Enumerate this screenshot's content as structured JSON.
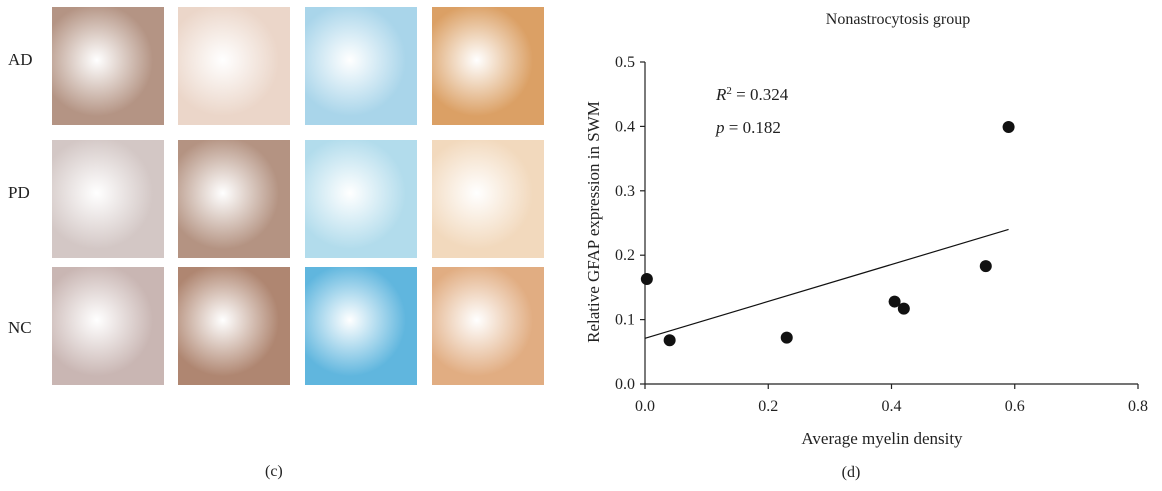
{
  "panel_c": {
    "rows": [
      {
        "label": "AD",
        "tile_colors": [
          "#b49484",
          "#ebd6c9",
          "#a9d5ea",
          "#dba065"
        ]
      },
      {
        "label": "PD",
        "tile_colors": [
          "#d3c7c5",
          "#b49382",
          "#b2dcec",
          "#f2d9bd"
        ]
      },
      {
        "label": "NC",
        "tile_colors": [
          "#c9b6b3",
          "#af8671",
          "#60b6de",
          "#e1ad82"
        ]
      }
    ],
    "caption": "(c)"
  },
  "panel_d": {
    "caption": "(d)",
    "annotation": {
      "r2_symbol": "R",
      "r2_exp": "2",
      "r2_value": " = 0.324",
      "p_symbol": "p",
      "p_value": " = 0.182"
    }
  },
  "chart_data": {
    "type": "scatter",
    "title": "Nonastrocytosis group",
    "xlabel": "Average myelin density",
    "ylabel": "Relative GFAP expression in SWM",
    "xlim": [
      0.0,
      0.8
    ],
    "ylim": [
      0.0,
      0.5
    ],
    "xticks": [
      "0.0",
      "0.2",
      "0.4",
      "0.6",
      "0.8"
    ],
    "yticks": [
      "0.0",
      "0.1",
      "0.2",
      "0.3",
      "0.4",
      "0.5"
    ],
    "points": [
      {
        "x": 0.003,
        "y": 0.163
      },
      {
        "x": 0.04,
        "y": 0.068
      },
      {
        "x": 0.23,
        "y": 0.072
      },
      {
        "x": 0.405,
        "y": 0.128
      },
      {
        "x": 0.42,
        "y": 0.117
      },
      {
        "x": 0.553,
        "y": 0.183
      },
      {
        "x": 0.59,
        "y": 0.399
      }
    ],
    "trendline": {
      "x": [
        0.0,
        0.59
      ],
      "y": [
        0.071,
        0.24
      ]
    }
  }
}
